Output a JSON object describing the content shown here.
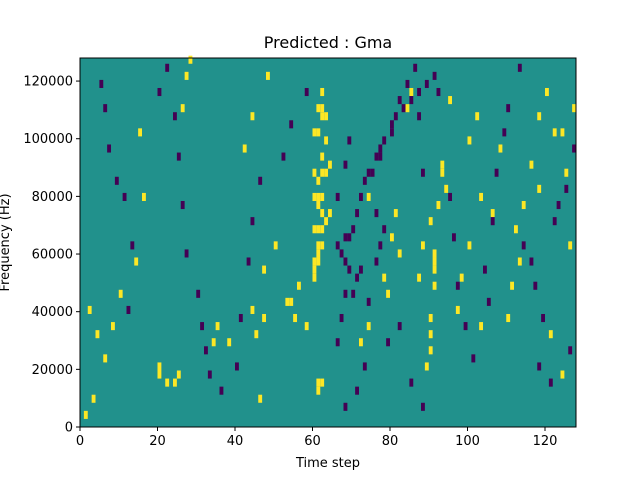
{
  "chart_data": {
    "type": "heatmap",
    "title": "Predicted : Gma",
    "xlabel": "Time step",
    "ylabel": "Frequency (Hz)",
    "xlim": [
      0,
      128
    ],
    "ylim": [
      0,
      128000
    ],
    "xticks": [
      0,
      20,
      40,
      60,
      80,
      100,
      120
    ],
    "yticks": [
      0,
      20000,
      40000,
      60000,
      80000,
      100000,
      120000
    ],
    "ytick_labels": [
      "0",
      "20000",
      "40000",
      "60000",
      "80000",
      "100000",
      "120000"
    ],
    "grid": false,
    "colormap": "viridis",
    "background_value": 0,
    "value_colors": {
      "-1": "#440154",
      "0": "#21918c",
      "1": "#fde725"
    },
    "cells": [
      [
        1,
        1,
        1
      ],
      [
        4,
        11,
        1
      ],
      [
        20,
        6,
        1
      ],
      [
        20,
        7,
        1
      ],
      [
        22,
        5,
        1
      ],
      [
        24,
        5,
        1
      ],
      [
        25,
        6,
        1
      ],
      [
        35,
        12,
        1
      ],
      [
        34,
        10,
        1
      ],
      [
        38,
        10,
        1
      ],
      [
        45,
        11,
        1
      ],
      [
        44,
        14,
        1
      ],
      [
        47,
        13,
        1
      ],
      [
        50,
        22,
        1
      ],
      [
        53,
        15,
        1
      ],
      [
        56,
        17,
        1
      ],
      [
        61,
        4,
        1
      ],
      [
        61,
        5,
        1
      ],
      [
        62,
        5,
        1
      ],
      [
        60,
        18,
        1
      ],
      [
        60,
        19,
        1
      ],
      [
        60,
        20,
        1
      ],
      [
        61,
        20,
        1
      ],
      [
        61,
        21,
        1
      ],
      [
        61,
        22,
        1
      ],
      [
        62,
        22,
        1
      ],
      [
        60,
        24,
        1
      ],
      [
        61,
        24,
        1
      ],
      [
        62,
        24,
        1
      ],
      [
        63,
        25,
        1
      ],
      [
        62,
        26,
        1
      ],
      [
        61,
        27,
        1
      ],
      [
        60,
        28,
        1
      ],
      [
        61,
        28,
        1
      ],
      [
        62,
        28,
        1
      ],
      [
        61,
        30,
        1
      ],
      [
        60,
        31,
        1
      ],
      [
        62,
        31,
        1
      ],
      [
        63,
        31,
        1
      ],
      [
        62,
        33,
        1
      ],
      [
        63,
        35,
        1
      ],
      [
        61,
        36,
        1
      ],
      [
        60,
        36,
        1
      ],
      [
        62,
        38,
        1
      ],
      [
        63,
        38,
        1
      ],
      [
        61,
        39,
        1
      ],
      [
        62,
        39,
        1
      ],
      [
        62,
        41,
        1
      ],
      [
        64,
        32,
        1
      ],
      [
        64,
        26,
        1
      ],
      [
        72,
        10,
        1
      ],
      [
        74,
        12,
        1
      ],
      [
        74,
        28,
        1
      ],
      [
        78,
        18,
        1
      ],
      [
        79,
        16,
        1
      ],
      [
        80,
        23,
        1
      ],
      [
        81,
        26,
        1
      ],
      [
        82,
        21,
        1
      ],
      [
        84,
        39,
        1
      ],
      [
        85,
        41,
        1
      ],
      [
        88,
        22,
        1
      ],
      [
        87,
        18,
        1
      ],
      [
        89,
        7,
        1
      ],
      [
        90,
        9,
        1
      ],
      [
        90,
        11,
        1
      ],
      [
        90,
        13,
        1
      ],
      [
        91,
        17,
        1
      ],
      [
        91,
        19,
        1
      ],
      [
        91,
        20,
        1
      ],
      [
        91,
        21,
        1
      ],
      [
        90,
        25,
        1
      ],
      [
        92,
        27,
        1
      ],
      [
        93,
        31,
        1
      ],
      [
        93,
        32,
        1
      ],
      [
        94,
        29,
        1
      ],
      [
        95,
        40,
        1
      ],
      [
        100,
        35,
        1
      ],
      [
        102,
        38,
        1
      ],
      [
        103,
        12,
        1
      ],
      [
        106,
        26,
        1
      ],
      [
        108,
        34,
        1
      ],
      [
        110,
        13,
        1
      ],
      [
        111,
        17,
        1
      ],
      [
        113,
        20,
        1
      ],
      [
        118,
        29,
        1
      ],
      [
        122,
        36,
        1
      ],
      [
        124,
        6,
        1
      ],
      [
        126,
        22,
        1
      ],
      [
        127,
        39,
        1
      ],
      [
        121,
        11,
        1
      ],
      [
        27,
        43,
        1
      ],
      [
        28,
        45,
        1
      ],
      [
        26,
        39,
        1
      ],
      [
        15,
        36,
        1
      ],
      [
        16,
        28,
        1
      ],
      [
        14,
        20,
        1
      ],
      [
        10,
        16,
        1
      ],
      [
        8,
        12,
        1
      ],
      [
        6,
        8,
        1
      ],
      [
        3,
        3,
        1
      ],
      [
        2,
        14,
        1
      ],
      [
        42,
        34,
        1
      ],
      [
        44,
        38,
        1
      ],
      [
        47,
        19,
        1
      ],
      [
        46,
        3,
        1
      ],
      [
        48,
        43,
        1
      ],
      [
        54,
        15,
        1
      ],
      [
        55,
        13,
        1
      ],
      [
        58,
        12,
        1
      ],
      [
        112,
        24,
        1
      ],
      [
        114,
        27,
        1
      ],
      [
        116,
        32,
        1
      ],
      [
        118,
        38,
        1
      ],
      [
        120,
        41,
        1
      ],
      [
        124,
        36,
        1
      ],
      [
        125,
        31,
        1
      ],
      [
        103,
        28,
        1
      ],
      [
        100,
        22,
        1
      ],
      [
        98,
        18,
        1
      ],
      [
        97,
        14,
        1
      ],
      [
        12,
        14,
        -1
      ],
      [
        13,
        22,
        -1
      ],
      [
        11,
        28,
        -1
      ],
      [
        9,
        30,
        -1
      ],
      [
        7,
        34,
        -1
      ],
      [
        6,
        39,
        -1
      ],
      [
        5,
        42,
        -1
      ],
      [
        20,
        41,
        -1
      ],
      [
        22,
        44,
        -1
      ],
      [
        24,
        38,
        -1
      ],
      [
        25,
        33,
        -1
      ],
      [
        26,
        27,
        -1
      ],
      [
        27,
        21,
        -1
      ],
      [
        30,
        16,
        -1
      ],
      [
        31,
        12,
        -1
      ],
      [
        32,
        9,
        -1
      ],
      [
        33,
        6,
        -1
      ],
      [
        36,
        4,
        -1
      ],
      [
        40,
        7,
        -1
      ],
      [
        41,
        13,
        -1
      ],
      [
        43,
        20,
        -1
      ],
      [
        44,
        25,
        -1
      ],
      [
        46,
        30,
        -1
      ],
      [
        52,
        33,
        -1
      ],
      [
        54,
        37,
        -1
      ],
      [
        58,
        41,
        -1
      ],
      [
        66,
        28,
        -1
      ],
      [
        68,
        32,
        -1
      ],
      [
        69,
        35,
        -1
      ],
      [
        68,
        23,
        -1
      ],
      [
        70,
        16,
        -1
      ],
      [
        71,
        18,
        -1
      ],
      [
        72,
        19,
        -1
      ],
      [
        74,
        15,
        -1
      ],
      [
        76,
        20,
        -1
      ],
      [
        77,
        22,
        -1
      ],
      [
        78,
        24,
        -1
      ],
      [
        75,
        31,
        -1
      ],
      [
        76,
        26,
        -1
      ],
      [
        77,
        33,
        -1
      ],
      [
        80,
        36,
        -1
      ],
      [
        82,
        40,
        -1
      ],
      [
        84,
        42,
        -1
      ],
      [
        86,
        44,
        -1
      ],
      [
        87,
        38,
        -1
      ],
      [
        88,
        31,
        -1
      ],
      [
        92,
        41,
        -1
      ],
      [
        95,
        28,
        -1
      ],
      [
        96,
        23,
        -1
      ],
      [
        97,
        17,
        -1
      ],
      [
        99,
        12,
        -1
      ],
      [
        101,
        8,
        -1
      ],
      [
        104,
        19,
        -1
      ],
      [
        105,
        15,
        -1
      ],
      [
        106,
        25,
        -1
      ],
      [
        107,
        31,
        -1
      ],
      [
        109,
        36,
        -1
      ],
      [
        110,
        39,
        -1
      ],
      [
        113,
        44,
        -1
      ],
      [
        114,
        22,
        -1
      ],
      [
        116,
        20,
        -1
      ],
      [
        117,
        17,
        -1
      ],
      [
        119,
        13,
        -1
      ],
      [
        122,
        25,
        -1
      ],
      [
        123,
        27,
        -1
      ],
      [
        125,
        29,
        -1
      ],
      [
        127,
        34,
        -1
      ],
      [
        126,
        9,
        -1
      ],
      [
        121,
        5,
        -1
      ],
      [
        118,
        7,
        -1
      ],
      [
        68,
        2,
        -1
      ],
      [
        71,
        4,
        -1
      ],
      [
        73,
        7,
        -1
      ],
      [
        79,
        10,
        -1
      ],
      [
        82,
        12,
        -1
      ],
      [
        85,
        5,
        -1
      ],
      [
        88,
        2,
        -1
      ],
      [
        66,
        10,
        -1
      ],
      [
        67,
        13,
        -1
      ],
      [
        68,
        16,
        -1
      ],
      [
        69,
        19,
        -1
      ],
      [
        68,
        20,
        -1
      ],
      [
        67,
        21,
        -1
      ],
      [
        66,
        22,
        -1
      ],
      [
        69,
        23,
        -1
      ],
      [
        70,
        24,
        -1
      ],
      [
        71,
        26,
        -1
      ],
      [
        72,
        28,
        -1
      ],
      [
        73,
        30,
        -1
      ],
      [
        74,
        31,
        -1
      ],
      [
        76,
        33,
        -1
      ],
      [
        77,
        34,
        -1
      ],
      [
        78,
        35,
        -1
      ],
      [
        80,
        37,
        -1
      ],
      [
        81,
        38,
        -1
      ],
      [
        83,
        39,
        -1
      ],
      [
        85,
        40,
        -1
      ],
      [
        87,
        41,
        -1
      ],
      [
        89,
        42,
        -1
      ],
      [
        91,
        43,
        -1
      ]
    ]
  }
}
